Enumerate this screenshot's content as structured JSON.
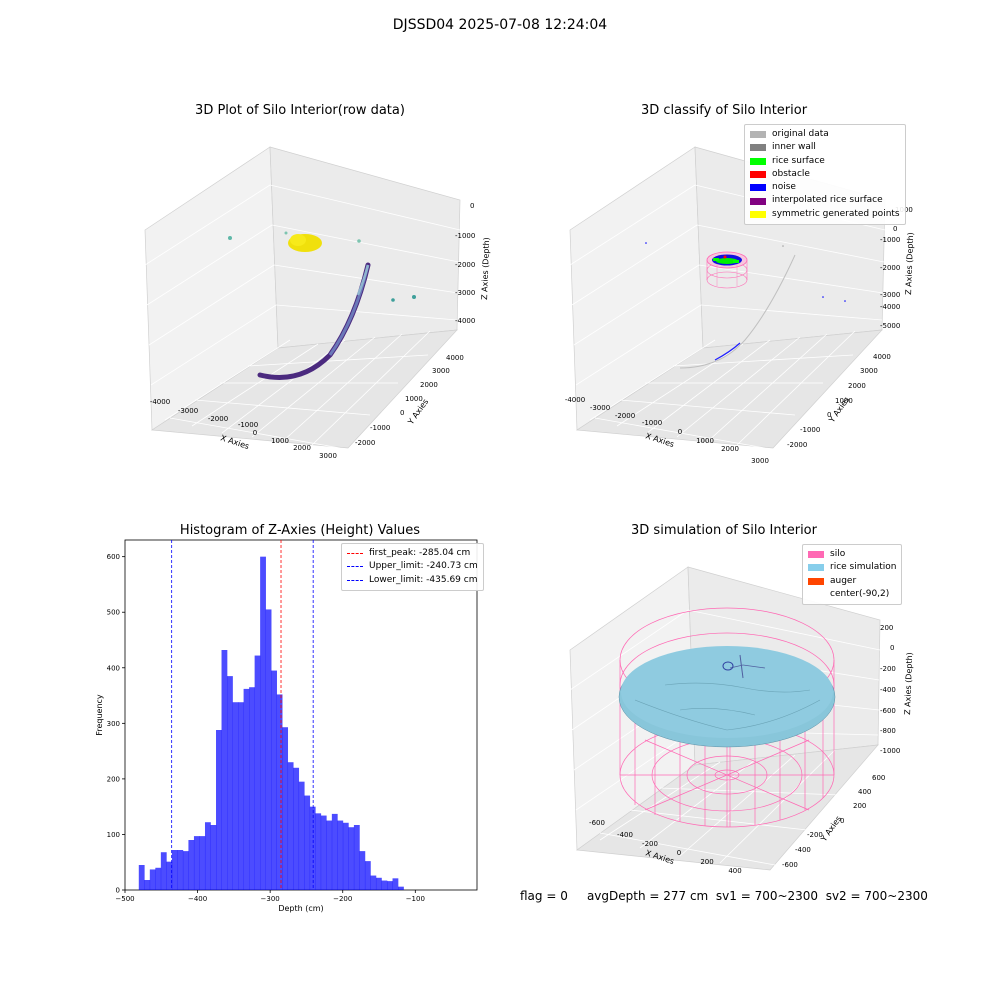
{
  "suptitle": "DJSSD04 2025-07-08 12:24:04",
  "panels": {
    "raw": {
      "title": "3D Plot of Silo Interior(row data)",
      "xlabel": "X Axies",
      "ylabel": "Y Axies",
      "zlabel": "Z Axies (Depth)",
      "xticks": [
        "-4000",
        "-3000",
        "-2000",
        "-1000",
        "0",
        "1000",
        "2000",
        "3000"
      ],
      "yticks": [
        "-2000",
        "-1000",
        "0",
        "1000",
        "2000",
        "3000",
        "4000"
      ],
      "zticks": [
        "0",
        "-1000",
        "-2000",
        "-3000",
        "-4000"
      ]
    },
    "classify": {
      "title": "3D classify of Silo Interior",
      "xlabel": "X Axies",
      "ylabel": "Y Axies",
      "zlabel": "Z Axies (Depth)",
      "xticks": [
        "-4000",
        "-3000",
        "-2000",
        "-1000",
        "0",
        "1000",
        "2000",
        "3000"
      ],
      "yticks": [
        "-2000",
        "-1000",
        "0",
        "1000",
        "2000",
        "3000",
        "4000"
      ],
      "zticks": [
        "1000",
        "0",
        "-1000",
        "-2000",
        "-3000",
        "-4000",
        "-5000"
      ],
      "legend": [
        {
          "label": "original data",
          "color": "#b3b3b3"
        },
        {
          "label": "inner wall",
          "color": "#808080"
        },
        {
          "label": "rice surface",
          "color": "#00ff00"
        },
        {
          "label": "obstacle",
          "color": "#ff0000"
        },
        {
          "label": "noise",
          "color": "#0000ff"
        },
        {
          "label": "interpolated rice surface",
          "color": "#800080"
        },
        {
          "label": "symmetric generated points",
          "color": "#ffff00"
        }
      ]
    },
    "simulation": {
      "title": "3D simulation of Silo Interior",
      "xlabel": "X Axies",
      "ylabel": "Y Axies",
      "zlabel": "Z Axies (Depth)",
      "xticks": [
        "-600",
        "-400",
        "-200",
        "0",
        "200",
        "400"
      ],
      "yticks": [
        "-600",
        "-400",
        "-200",
        "0",
        "200",
        "400",
        "600"
      ],
      "zticks": [
        "200",
        "0",
        "-200",
        "-400",
        "-600",
        "-800",
        "-1000"
      ],
      "legend": [
        {
          "label": "silo",
          "color": "#ff69b4"
        },
        {
          "label": "rice simulation",
          "color": "#87ceeb"
        },
        {
          "label": "auger",
          "color": "#ff4500"
        },
        {
          "label": "center(-90,2)",
          "color": "#ffffff"
        }
      ]
    }
  },
  "chart_data": [
    {
      "type": "bar",
      "title": "Histogram of Z-Axies (Height) Values",
      "xlabel": "Depth (cm)",
      "ylabel": "Frequency",
      "xlim": [
        -500,
        -15
      ],
      "ylim": [
        0,
        630
      ],
      "xticks": [
        -500,
        -400,
        -300,
        -200,
        -100
      ],
      "yticks": [
        0,
        100,
        200,
        300,
        400,
        500,
        600
      ],
      "bar_color": "#0000ff",
      "bin_start": -481,
      "bin_width": 7.6,
      "values": [
        45,
        18,
        37,
        40,
        68,
        51,
        72,
        72,
        70,
        90,
        97,
        97,
        122,
        117,
        288,
        432,
        385,
        338,
        338,
        362,
        365,
        422,
        600,
        505,
        395,
        352,
        293,
        230,
        220,
        195,
        170,
        150,
        138,
        134,
        125,
        137,
        125,
        121,
        113,
        117,
        70,
        52,
        26,
        22,
        17,
        16,
        21,
        6
      ],
      "vlines": [
        {
          "label": "first_peak: -285.04 cm",
          "x": -285.04,
          "color": "#ff0000"
        },
        {
          "label": "Upper_limit: -240.73 cm",
          "x": -240.73,
          "color": "#0000ff"
        },
        {
          "label": "Lower_limit: -435.69 cm",
          "x": -435.69,
          "color": "#0000ff"
        }
      ],
      "legend_position": "upper right"
    }
  ],
  "status": {
    "flag": "flag = 0",
    "avg": "avgDepth = 277 cm",
    "sv1": "sv1 = 700~2300",
    "sv2": "sv2 = 700~2300"
  }
}
